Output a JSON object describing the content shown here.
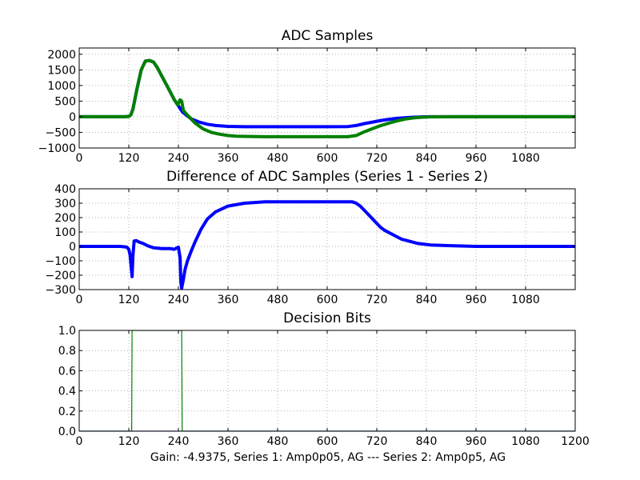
{
  "figure": {
    "caption": "Gain: -4.9375, Series 1: Amp0p05, AG --- Series 2: Amp0p5, AG",
    "colors": {
      "series1": "#0000ff",
      "series2": "#008000"
    }
  },
  "chart_data": [
    {
      "type": "line",
      "title": "ADC Samples",
      "xlim": [
        0,
        1200
      ],
      "ylim": [
        -1000,
        2200
      ],
      "grid": true,
      "x_ticks": [
        0,
        120,
        240,
        360,
        480,
        600,
        720,
        840,
        960,
        1080
      ],
      "y_ticks": [
        -1000,
        -500,
        0,
        500,
        1000,
        1500,
        2000
      ],
      "x_tick_labels": [
        "0",
        "120",
        "240",
        "360",
        "480",
        "600",
        "720",
        "840",
        "960",
        "1080"
      ],
      "y_tick_labels": [
        "−1000",
        "−500",
        "0",
        "500",
        "1000",
        "1500",
        "2000"
      ],
      "series": [
        {
          "color": "#0000ff",
          "x": [
            0,
            110,
            120,
            125,
            130,
            140,
            150,
            160,
            170,
            180,
            190,
            200,
            210,
            220,
            230,
            240,
            250,
            270,
            290,
            310,
            330,
            360,
            400,
            450,
            500,
            550,
            600,
            650,
            670,
            690,
            710,
            730,
            750,
            770,
            790,
            810,
            830,
            850,
            900,
            1000,
            1200
          ],
          "y": [
            0,
            0,
            10,
            60,
            250,
            900,
            1500,
            1780,
            1800,
            1750,
            1550,
            1300,
            1050,
            800,
            550,
            350,
            150,
            -60,
            -170,
            -240,
            -280,
            -310,
            -320,
            -320,
            -320,
            -320,
            -320,
            -315,
            -280,
            -220,
            -170,
            -120,
            -80,
            -50,
            -30,
            -15,
            -5,
            0,
            0,
            0,
            0
          ]
        },
        {
          "color": "#008000",
          "x": [
            0,
            110,
            120,
            125,
            130,
            140,
            150,
            160,
            170,
            180,
            190,
            200,
            210,
            220,
            230,
            238,
            244,
            248,
            252,
            262,
            280,
            300,
            320,
            340,
            360,
            380,
            400,
            450,
            500,
            550,
            600,
            650,
            670,
            690,
            710,
            730,
            750,
            770,
            790,
            810,
            830,
            850,
            900,
            1000,
            1200
          ],
          "y": [
            0,
            0,
            10,
            60,
            250,
            900,
            1500,
            1780,
            1800,
            1750,
            1550,
            1300,
            1050,
            800,
            550,
            380,
            540,
            500,
            200,
            50,
            -200,
            -390,
            -500,
            -560,
            -600,
            -620,
            -630,
            -640,
            -640,
            -640,
            -640,
            -640,
            -600,
            -480,
            -380,
            -280,
            -200,
            -130,
            -70,
            -35,
            -15,
            -5,
            0,
            0,
            0
          ]
        }
      ]
    },
    {
      "type": "line",
      "title": "Difference of ADC Samples (Series 1 - Series 2)",
      "xlim": [
        0,
        1200
      ],
      "ylim": [
        -300,
        400
      ],
      "grid": true,
      "x_ticks": [
        0,
        120,
        240,
        360,
        480,
        600,
        720,
        840,
        960,
        1080
      ],
      "y_ticks": [
        -300,
        -200,
        -100,
        0,
        100,
        200,
        300,
        400
      ],
      "x_tick_labels": [
        "0",
        "120",
        "240",
        "360",
        "480",
        "600",
        "720",
        "840",
        "960",
        "1080"
      ],
      "y_tick_labels": [
        "−300",
        "−200",
        "−100",
        "0",
        "100",
        "200",
        "300",
        "400"
      ],
      "series": [
        {
          "color": "#0000ff",
          "x": [
            0,
            100,
            115,
            120,
            123,
            126,
            128,
            130,
            133,
            138,
            145,
            155,
            165,
            180,
            200,
            220,
            230,
            240,
            244,
            246,
            248,
            252,
            256,
            262,
            270,
            280,
            295,
            310,
            330,
            360,
            400,
            450,
            500,
            550,
            600,
            640,
            660,
            670,
            680,
            690,
            700,
            710,
            720,
            730,
            740,
            760,
            780,
            800,
            820,
            850,
            900,
            960,
            1000,
            1200
          ],
          "y": [
            0,
            0,
            -5,
            -20,
            -60,
            -150,
            -210,
            -60,
            38,
            40,
            30,
            20,
            5,
            -10,
            -15,
            -15,
            -20,
            -5,
            -80,
            -250,
            -290,
            -230,
            -160,
            -100,
            -40,
            30,
            120,
            190,
            240,
            280,
            300,
            310,
            310,
            310,
            310,
            310,
            310,
            300,
            280,
            250,
            220,
            190,
            160,
            130,
            110,
            80,
            50,
            35,
            20,
            10,
            5,
            0,
            0,
            0
          ]
        }
      ]
    },
    {
      "type": "line",
      "title": "Decision Bits",
      "xlim": [
        0,
        1200
      ],
      "ylim": [
        0,
        1.0
      ],
      "grid": true,
      "x_ticks": [
        0,
        120,
        240,
        360,
        480,
        600,
        720,
        840,
        960,
        1080,
        1200
      ],
      "y_ticks": [
        0,
        0.2,
        0.4,
        0.6,
        0.8,
        1.0
      ],
      "x_tick_labels": [
        "0",
        "120",
        "240",
        "360",
        "480",
        "600",
        "720",
        "840",
        "960",
        "1080",
        "1200"
      ],
      "y_tick_labels": [
        "0.0",
        "0.2",
        "0.4",
        "0.6",
        "0.8",
        "1.0"
      ],
      "series": [
        {
          "color": "#0000ff",
          "x": [
            0,
            1200
          ],
          "y": [
            0,
            0
          ]
        },
        {
          "color": "#008000",
          "x": [
            0,
            127,
            128,
            248,
            249,
            1200
          ],
          "y": [
            0,
            0,
            1,
            1,
            0,
            0
          ]
        }
      ]
    }
  ]
}
